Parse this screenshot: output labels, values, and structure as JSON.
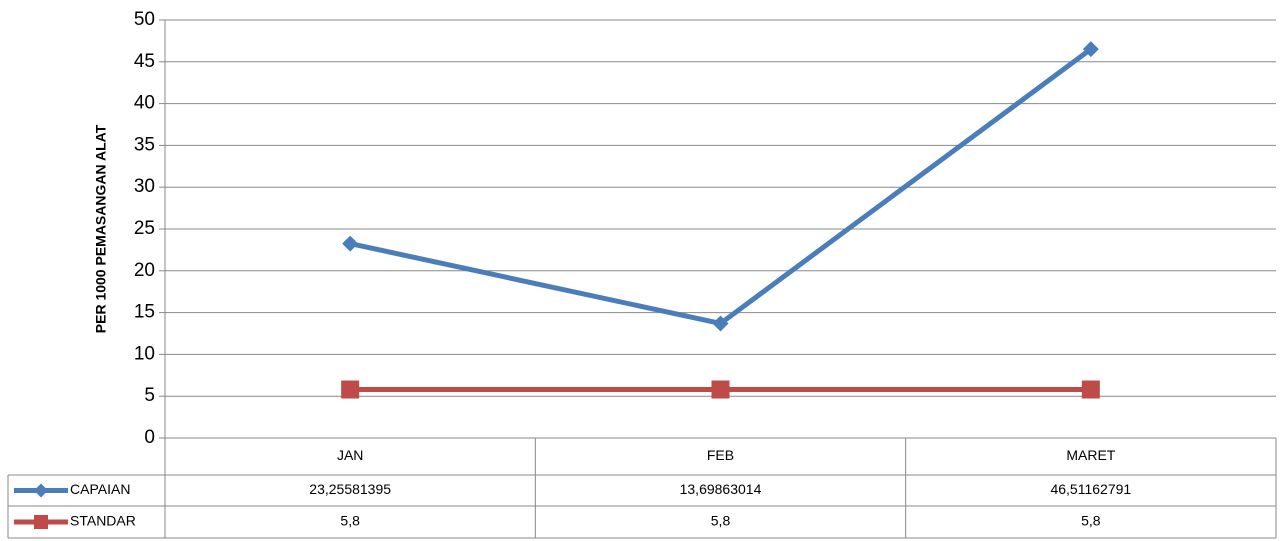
{
  "chart_data": {
    "type": "line",
    "y_label": "PER 1000 PEMASANGAN ALAT",
    "categories": [
      "JAN",
      "FEB",
      "MARET"
    ],
    "series": [
      {
        "name": "CAPAIAN",
        "color": "#4a7ebb",
        "marker": "diamond",
        "values": [
          23.25581395,
          13.69863014,
          46.51162791
        ],
        "value_labels": [
          "23,25581395",
          "13,69863014",
          "46,51162791"
        ]
      },
      {
        "name": "STANDAR",
        "color": "#be4b48",
        "marker": "square",
        "values": [
          5.8,
          5.8,
          5.8
        ],
        "value_labels": [
          "5,8",
          "5,8",
          "5,8"
        ]
      }
    ],
    "ylim": [
      0,
      50
    ],
    "yticks": [
      0,
      5,
      10,
      15,
      20,
      25,
      30,
      35,
      40,
      45,
      50
    ],
    "grid": true
  }
}
